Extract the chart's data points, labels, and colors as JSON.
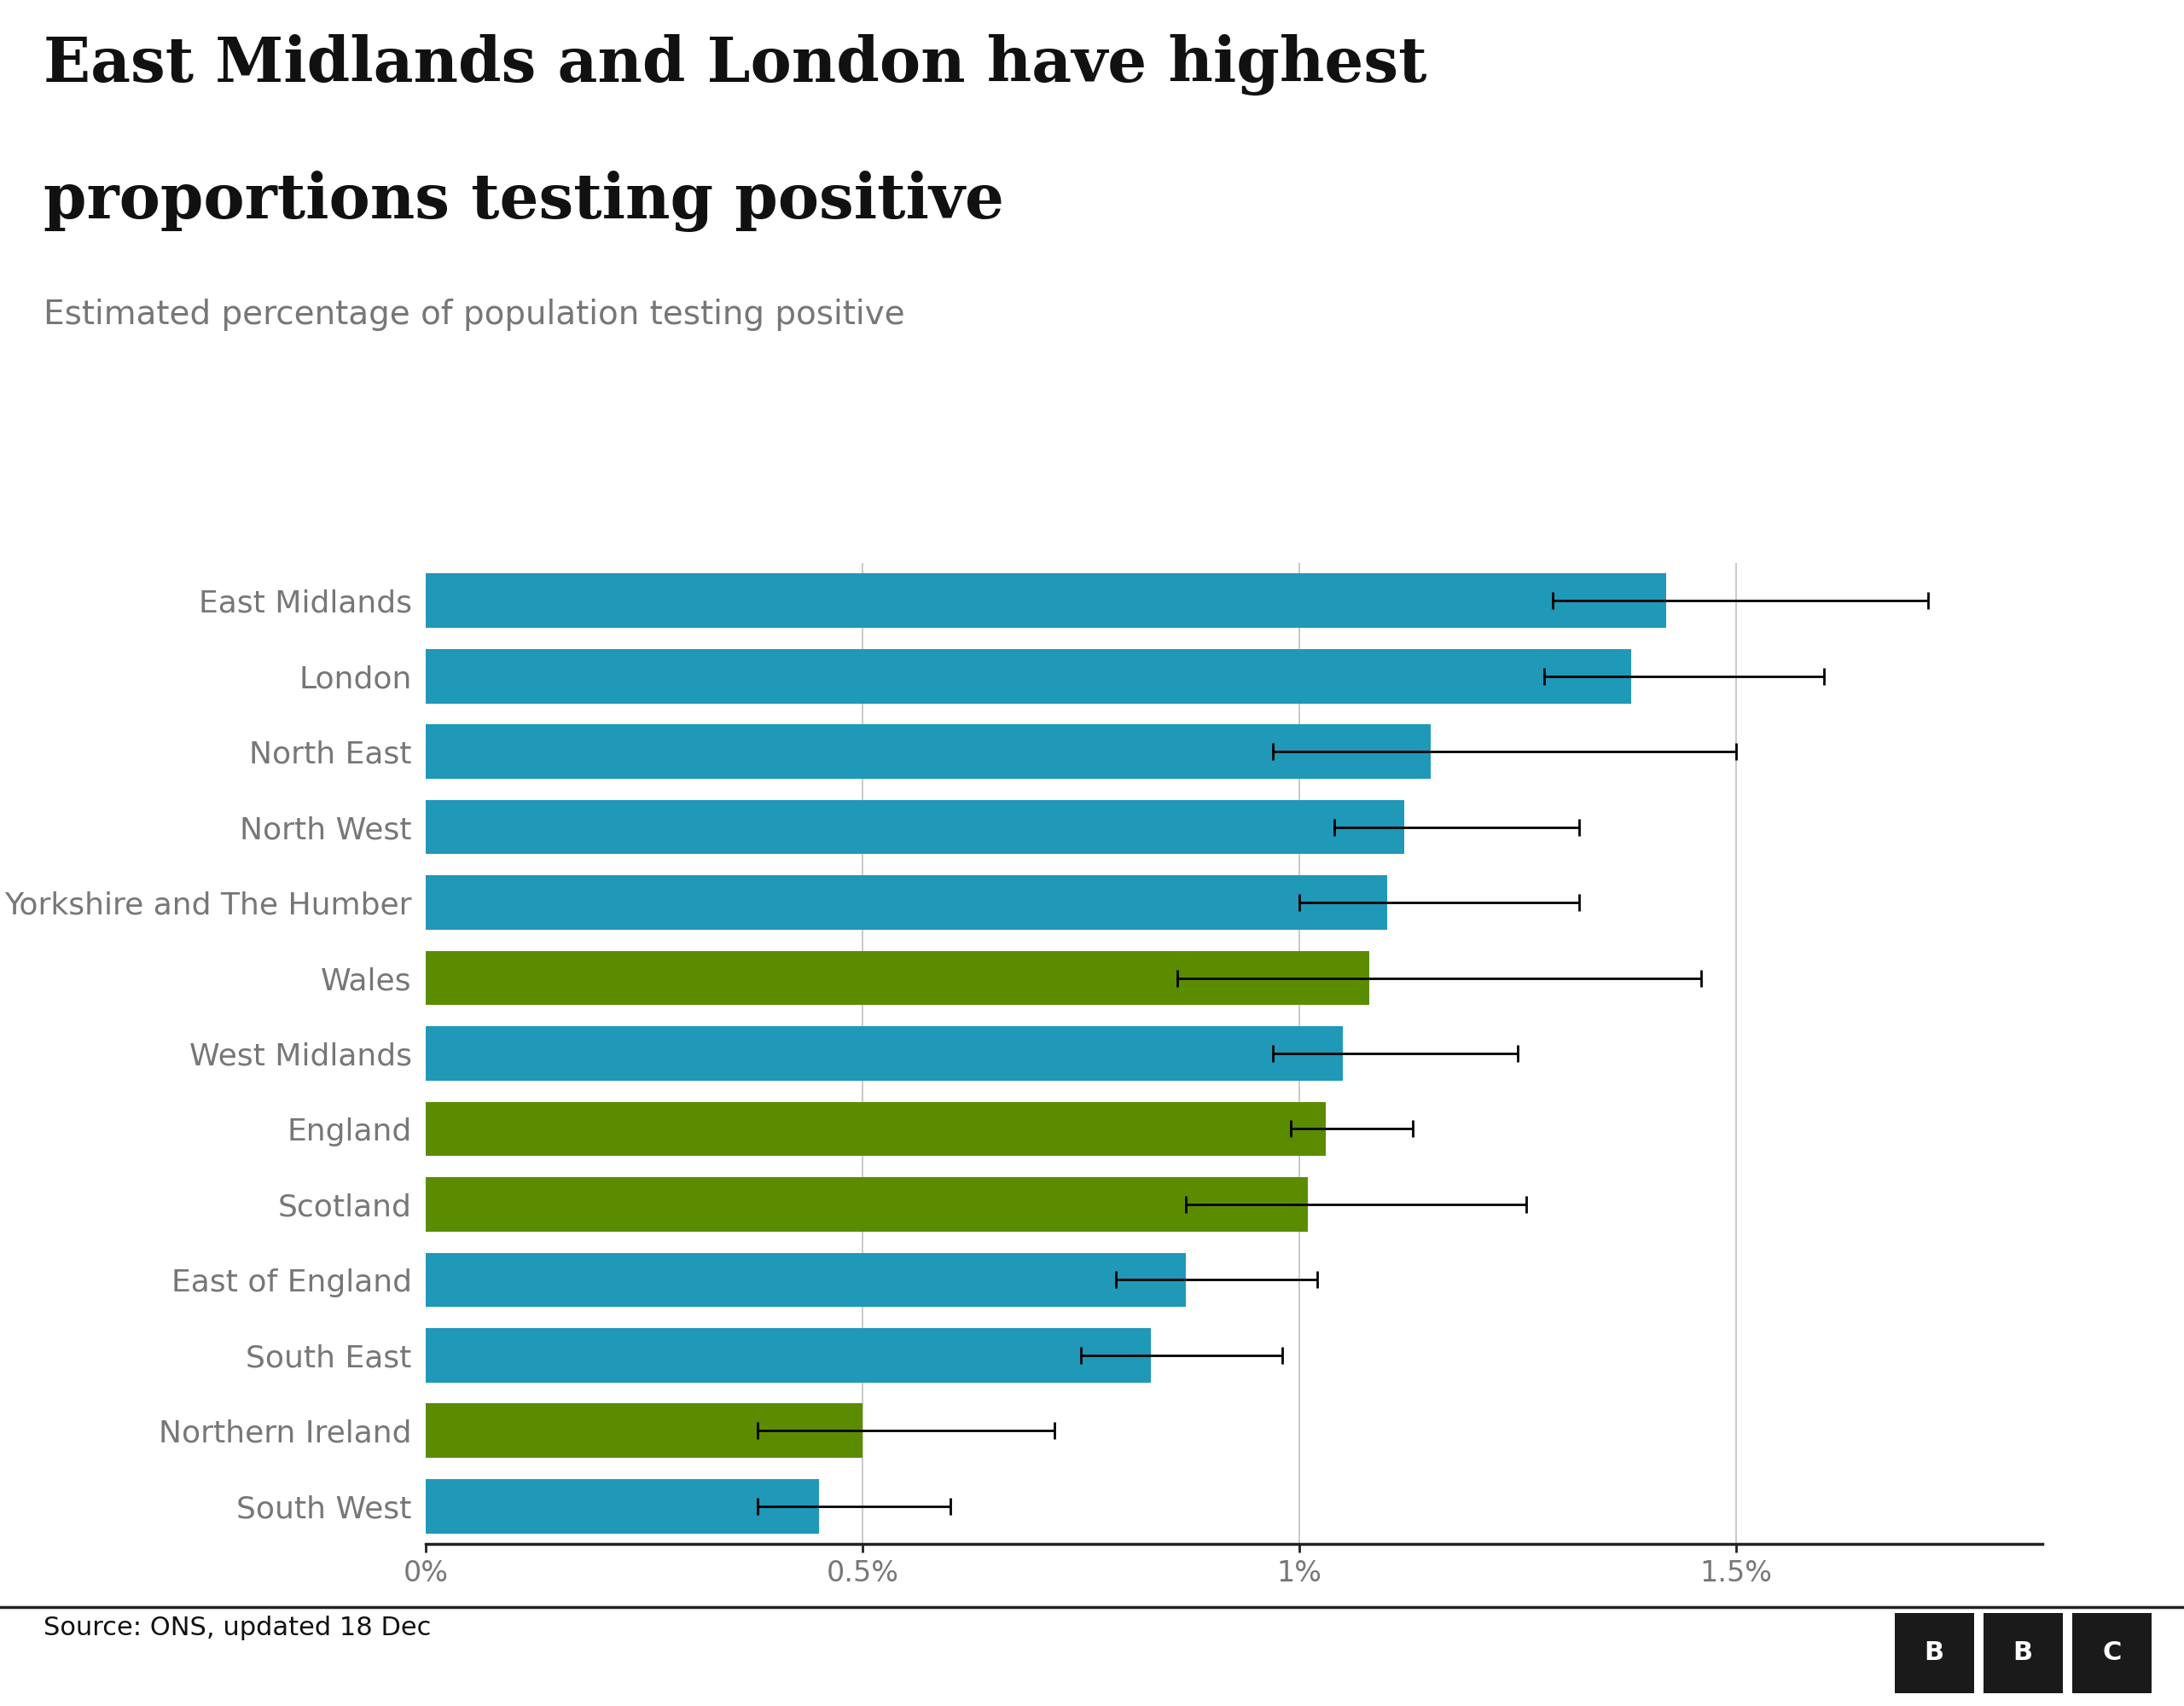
{
  "title_line1": "East Midlands and London have highest",
  "title_line2": "proportions testing positive",
  "subtitle": "Estimated percentage of population testing positive",
  "source": "Source: ONS, updated 18 Dec",
  "categories": [
    "East Midlands",
    "London",
    "North East",
    "North West",
    "Yorkshire and The Humber",
    "Wales",
    "West Midlands",
    "England",
    "Scotland",
    "East of England",
    "South East",
    "Northern Ireland",
    "South West"
  ],
  "values": [
    1.42,
    1.38,
    1.15,
    1.12,
    1.1,
    1.08,
    1.05,
    1.03,
    1.01,
    0.87,
    0.83,
    0.5,
    0.45
  ],
  "error_low": [
    0.13,
    0.1,
    0.18,
    0.08,
    0.1,
    0.22,
    0.08,
    0.04,
    0.14,
    0.08,
    0.08,
    0.12,
    0.07
  ],
  "error_high": [
    0.3,
    0.22,
    0.35,
    0.2,
    0.22,
    0.38,
    0.2,
    0.1,
    0.25,
    0.15,
    0.15,
    0.22,
    0.15
  ],
  "bar_colors": [
    "#2098b8",
    "#2098b8",
    "#2098b8",
    "#2098b8",
    "#2098b8",
    "#5b8c00",
    "#2098b8",
    "#5b8c00",
    "#5b8c00",
    "#2098b8",
    "#2098b8",
    "#5b8c00",
    "#2098b8"
  ],
  "vline_positions": [
    0.5,
    1.0,
    1.5
  ],
  "xticklabels": [
    "0%",
    "0.5%",
    "1%",
    "1.5%"
  ],
  "xlim_max": 1.85,
  "bar_height": 0.72,
  "title_fontsize": 52,
  "subtitle_fontsize": 28,
  "label_fontsize": 26,
  "tick_fontsize": 24,
  "source_fontsize": 22,
  "label_color": "#777777",
  "title_color": "#111111",
  "background_color": "#ffffff"
}
